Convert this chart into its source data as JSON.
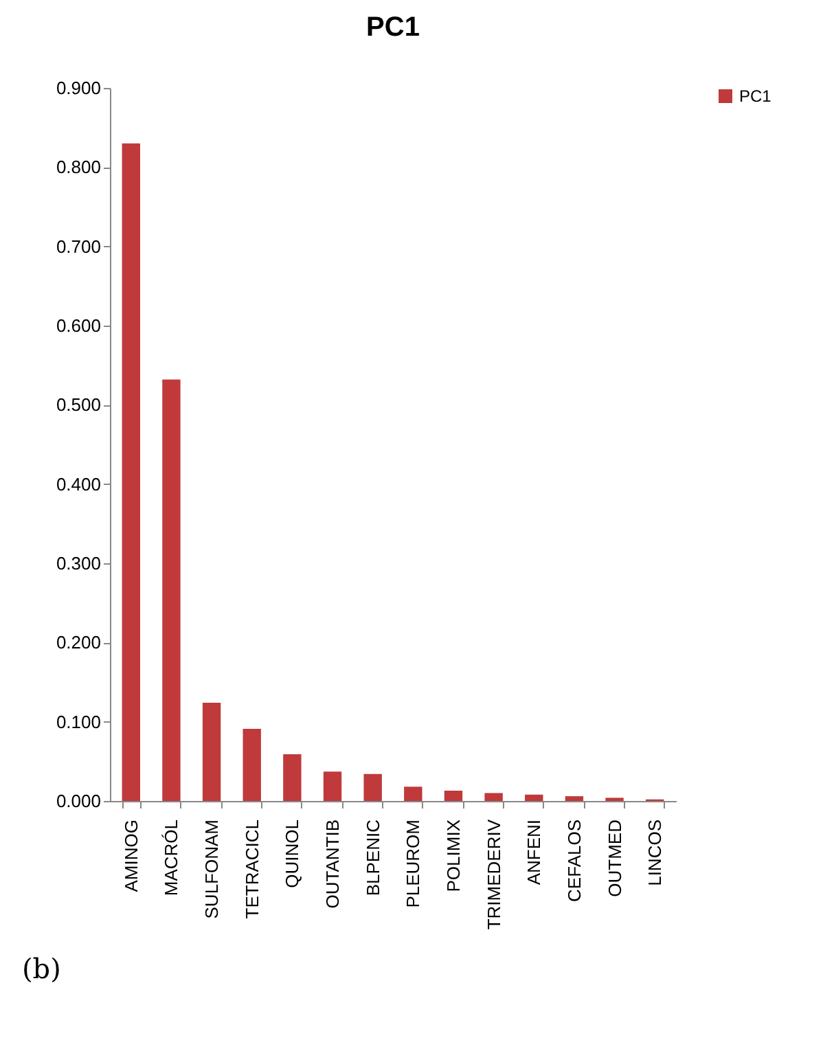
{
  "chart_data": {
    "type": "bar",
    "title": "PC1",
    "categories": [
      "AMINOG",
      "MACRÓL",
      "SULFONAM",
      "TETRACICL",
      "QUINOL",
      "OUTANTIB",
      "BLPENIC",
      "PLEUROM",
      "POLIMIX",
      "TRIMEDERIV",
      "ANFENI",
      "CEFALOS",
      "OUTMED",
      "LINCOS"
    ],
    "series": [
      {
        "name": "PC1",
        "color": "#c0393b",
        "values": [
          0.83,
          0.532,
          0.124,
          0.091,
          0.059,
          0.037,
          0.034,
          0.018,
          0.013,
          0.01,
          0.008,
          0.006,
          0.004,
          0.002
        ]
      }
    ],
    "ylim": [
      0,
      0.9
    ],
    "yticks": [
      {
        "value": 0,
        "label": "0.000"
      },
      {
        "value": 0.1,
        "label": "0.100"
      },
      {
        "value": 0.2,
        "label": "0.200"
      },
      {
        "value": 0.3,
        "label": "0.300"
      },
      {
        "value": 0.4,
        "label": "0.400"
      },
      {
        "value": 0.5,
        "label": "0.500"
      },
      {
        "value": 0.6,
        "label": "0.600"
      },
      {
        "value": 0.7,
        "label": "0.700"
      },
      {
        "value": 0.8,
        "label": "0.800"
      },
      {
        "value": 0.9,
        "label": "0.900"
      }
    ],
    "legend": "right",
    "grid": false,
    "annotations": [
      "(b)"
    ]
  }
}
